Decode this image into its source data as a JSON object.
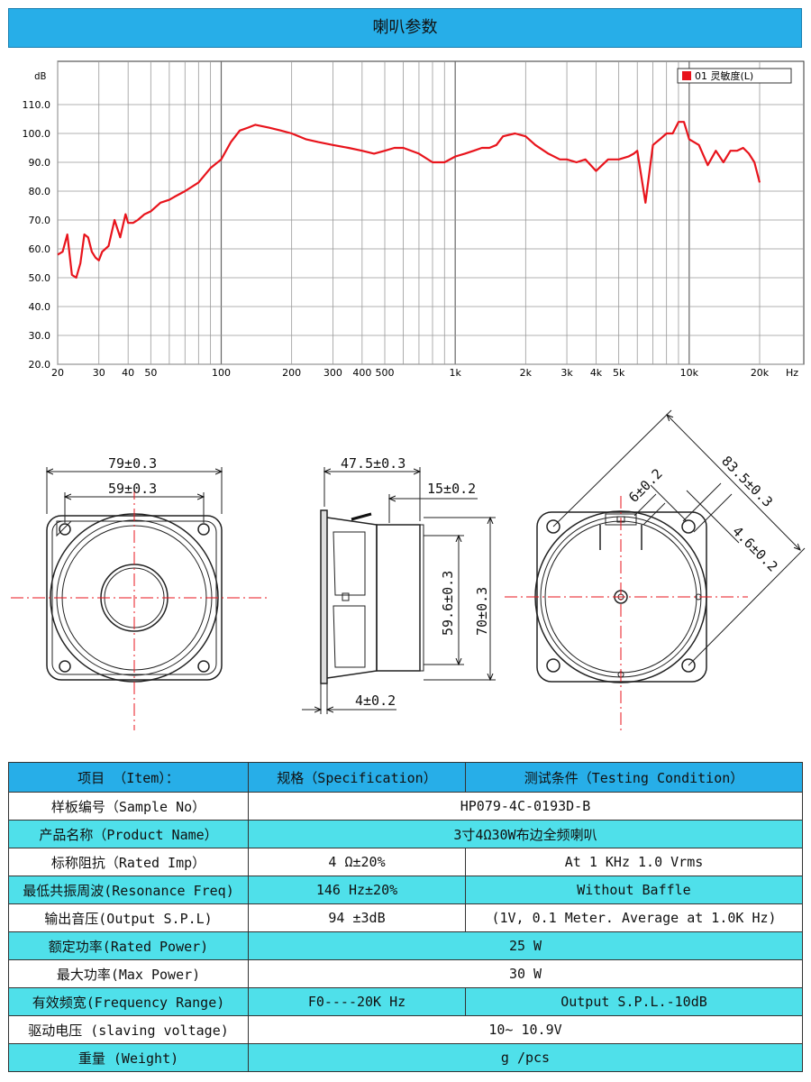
{
  "page_title": "喇叭参数",
  "chart_data": {
    "type": "line",
    "title": "",
    "xlabel": "",
    "ylabel": "dB",
    "xunit": "Hz",
    "xscale": "log",
    "xlim": [
      20,
      20000
    ],
    "ylim": [
      20,
      120
    ],
    "grid": true,
    "legend_position": "top-right",
    "x_tick_labels": [
      {
        "v": 20,
        "t": "20"
      },
      {
        "v": 30,
        "t": "30"
      },
      {
        "v": 40,
        "t": "40"
      },
      {
        "v": 50,
        "t": "50"
      },
      {
        "v": 100,
        "t": "100"
      },
      {
        "v": 200,
        "t": "200"
      },
      {
        "v": 300,
        "t": "300"
      },
      {
        "v": 400,
        "t": "400"
      },
      {
        "v": 500,
        "t": "500"
      },
      {
        "v": 1000,
        "t": "1k"
      },
      {
        "v": 2000,
        "t": "2k"
      },
      {
        "v": 3000,
        "t": "3k"
      },
      {
        "v": 4000,
        "t": "4k"
      },
      {
        "v": 5000,
        "t": "5k"
      },
      {
        "v": 10000,
        "t": "10k"
      },
      {
        "v": 20000,
        "t": "20k"
      }
    ],
    "y_ticks": [
      20,
      30,
      40,
      50,
      60,
      70,
      80,
      90,
      100,
      110
    ],
    "y_tick_labels": [
      "20.0",
      "30.0",
      "40.0",
      "50.0",
      "60.0",
      "70.0",
      "80.0",
      "90.0",
      "100.0",
      "110.0"
    ],
    "series": [
      {
        "name": "01 灵敏度(L)",
        "color": "#e8141c",
        "x": [
          20,
          21,
          22,
          23,
          24,
          25,
          26,
          27,
          28,
          29,
          30,
          31,
          32,
          33,
          35,
          37,
          39,
          40,
          42,
          44,
          47,
          50,
          55,
          60,
          63,
          70,
          80,
          90,
          100,
          110,
          120,
          130,
          140,
          160,
          180,
          200,
          230,
          260,
          300,
          350,
          400,
          450,
          500,
          550,
          600,
          700,
          800,
          900,
          1000,
          1100,
          1200,
          1300,
          1400,
          1500,
          1600,
          1800,
          2000,
          2200,
          2500,
          2800,
          3000,
          3300,
          3600,
          4000,
          4500,
          5000,
          5500,
          5800,
          6000,
          6500,
          7000,
          7500,
          8000,
          8500,
          9000,
          9500,
          10000,
          11000,
          12000,
          13000,
          14000,
          15000,
          16000,
          17000,
          18000,
          19000,
          20000
        ],
        "y": [
          58,
          59,
          65,
          51,
          50,
          55,
          65,
          64,
          59,
          57,
          56,
          59,
          60,
          61,
          70,
          64,
          72,
          69,
          69,
          70,
          72,
          73,
          76,
          77,
          78,
          80,
          83,
          88,
          91,
          97,
          101,
          102,
          103,
          102,
          101,
          100,
          98,
          97,
          96,
          95,
          94,
          93,
          94,
          95,
          95,
          93,
          90,
          90,
          92,
          93,
          94,
          95,
          95,
          96,
          99,
          100,
          99,
          96,
          93,
          91,
          91,
          90,
          91,
          87,
          91,
          91,
          92,
          93,
          94,
          76,
          96,
          98,
          100,
          100,
          104,
          104,
          98,
          96,
          89,
          94,
          90,
          94,
          94,
          95,
          93,
          90,
          83
        ]
      }
    ]
  },
  "drawings": {
    "front": {
      "outer_dim": "79±0.3",
      "inner_dim": "59±0.3"
    },
    "side": {
      "depth_dim": "47.5±0.3",
      "magnet_dim": "15±0.2",
      "cone_dim": "59.6±0.3",
      "frame_dim": "70±0.3",
      "flange_dim": "4±0.2"
    },
    "back": {
      "diag_dim": "83.5±0.3",
      "slot_dim": "6±0.2",
      "hole_dim": "4.6±0.2"
    }
  },
  "spec_table": {
    "headers": [
      "项目 （Item）：",
      "规格（Specification）",
      "测试条件（Testing Condition）"
    ],
    "rows": [
      {
        "item": "样板编号（Sample No）",
        "spec": "HP079-4C-0193D-B",
        "cond": "",
        "span": true
      },
      {
        "item": "产品名称（Product Name）",
        "spec": "3寸4Ω30W布边全频喇叭",
        "cond": "",
        "span": true
      },
      {
        "item": "标称阻抗（Rated Imp）",
        "spec": "4 Ω±20%",
        "cond": "At 1 KHz  1.0 Vrms",
        "span": false
      },
      {
        "item": "最低共振周波(Resonance Freq)",
        "spec": "146 Hz±20%",
        "cond": "Without Baffle",
        "span": false
      },
      {
        "item": "输出音压(Output S.P.L)",
        "spec": "94 ±3dB",
        "cond": "(1V, 0.1 Meter. Average at 1.0K Hz)",
        "span": false
      },
      {
        "item": "额定功率(Rated Power)",
        "spec": "25 W",
        "cond": "",
        "span": true
      },
      {
        "item": "最大功率(Max Power)",
        "spec": "30 W",
        "cond": "",
        "span": true
      },
      {
        "item": "有效频宽(Frequency Range)",
        "spec": "F0----20K Hz",
        "cond": "Output S.P.L.-10dB",
        "span": false
      },
      {
        "item": "驱动电压 (slaving voltage)",
        "spec": "10~ 10.9V",
        "cond": "",
        "span": true
      },
      {
        "item": "重量 (Weight)",
        "spec": "g /pcs",
        "cond": "",
        "span": true
      }
    ]
  }
}
